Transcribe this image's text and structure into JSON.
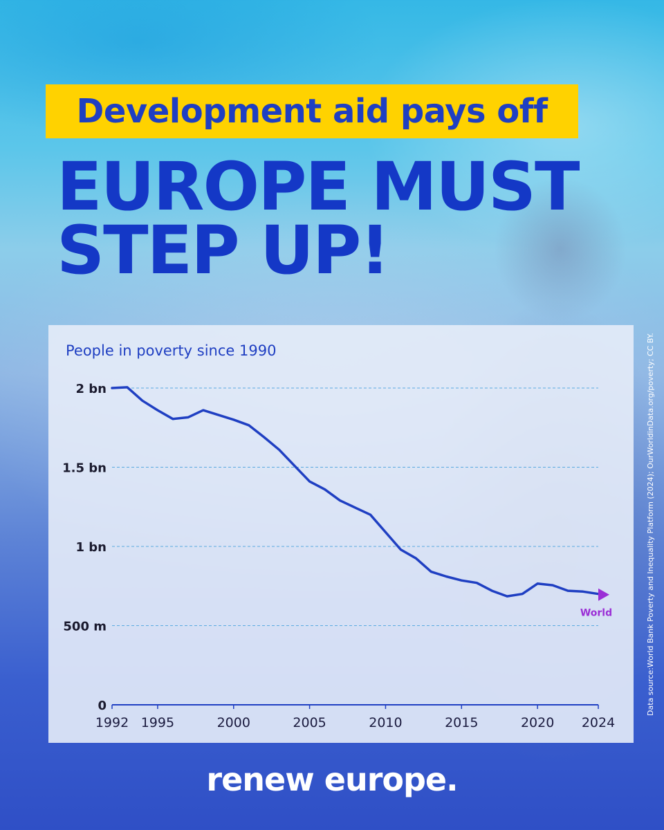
{
  "header": {
    "tagline": "Development aid pays off",
    "title_line1": "EUROPE MUST",
    "title_line2": "STEP UP!"
  },
  "source_note": "Data source:World Bank Poverty and Inequality Platform (2024); OurWorldinData.org/poverty; CC BY.",
  "brand": "renew europe.",
  "colors": {
    "tag_bg": "#ffd200",
    "title_blue": "#1438c6",
    "line": "#1f3fc2",
    "series_label": "#9b2fd6",
    "grid": "#5aa9e0"
  },
  "chart_data": {
    "type": "line",
    "title": "People in poverty since 1990",
    "xlabel": "",
    "ylabel": "",
    "xlim": [
      1992,
      2024
    ],
    "ylim": [
      0,
      2000000000
    ],
    "x_ticks": [
      1992,
      1995,
      2000,
      2005,
      2010,
      2015,
      2020,
      2024
    ],
    "y_ticks": [
      {
        "value": 2000000000,
        "label": "2 bn"
      },
      {
        "value": 1500000000,
        "label": "1.5 bn"
      },
      {
        "value": 1000000000,
        "label": "1 bn"
      },
      {
        "value": 500000000,
        "label": "500 m"
      },
      {
        "value": 0,
        "label": "0"
      }
    ],
    "grid": "horizontal dashed",
    "series": [
      {
        "name": "World",
        "x": [
          1992,
          1993,
          1994,
          1995,
          1996,
          1997,
          1998,
          1999,
          2000,
          2001,
          2002,
          2003,
          2004,
          2005,
          2006,
          2007,
          2008,
          2009,
          2010,
          2011,
          2012,
          2013,
          2014,
          2015,
          2016,
          2017,
          2018,
          2019,
          2020,
          2021,
          2022,
          2023,
          2024
        ],
        "y": [
          2000000000,
          2005000000,
          1920000000,
          1860000000,
          1805000000,
          1815000000,
          1860000000,
          1830000000,
          1800000000,
          1765000000,
          1690000000,
          1610000000,
          1510000000,
          1410000000,
          1360000000,
          1290000000,
          1245000000,
          1200000000,
          1090000000,
          980000000,
          925000000,
          840000000,
          810000000,
          785000000,
          770000000,
          720000000,
          685000000,
          700000000,
          765000000,
          755000000,
          720000000,
          715000000,
          700000000
        ]
      }
    ]
  }
}
